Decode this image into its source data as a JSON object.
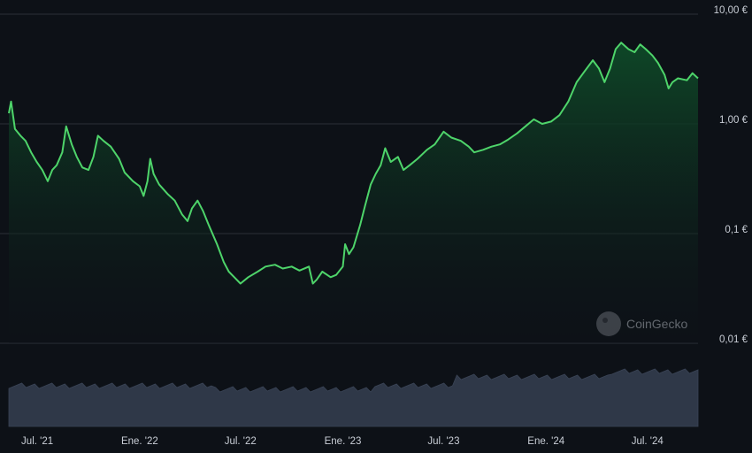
{
  "watermark": "CoinGecko",
  "chart_data": {
    "type": "area",
    "title": "",
    "xlabel": "",
    "ylabel": "",
    "y_scale": "log",
    "ylim": [
      0.01,
      10
    ],
    "y_ticks": [
      {
        "value": 10,
        "label": "10,00 €"
      },
      {
        "value": 1,
        "label": "1,00 €"
      },
      {
        "value": 0.1,
        "label": "0,1 €"
      },
      {
        "value": 0.01,
        "label": "0,01 €"
      }
    ],
    "x_range": [
      "2021-05-11",
      "2024-09-30"
    ],
    "x_ticks": [
      {
        "date": "2021-07-01",
        "label": "Jul. '21"
      },
      {
        "date": "2022-01-01",
        "label": "Ene. '22"
      },
      {
        "date": "2022-07-01",
        "label": "Jul. '22"
      },
      {
        "date": "2023-01-01",
        "label": "Ene. '23"
      },
      {
        "date": "2023-07-01",
        "label": "Jul. '23"
      },
      {
        "date": "2024-01-01",
        "label": "Ene. '24"
      },
      {
        "date": "2024-07-01",
        "label": "Jul. '24"
      }
    ],
    "grid": true,
    "series": [
      {
        "color": "#4ed46a",
        "fill_color": "#0e4a28",
        "points": [
          [
            "2021-05-11",
            1.25
          ],
          [
            "2021-05-15",
            1.6
          ],
          [
            "2021-05-22",
            0.9
          ],
          [
            "2021-06-01",
            0.78
          ],
          [
            "2021-06-10",
            0.7
          ],
          [
            "2021-06-20",
            0.55
          ],
          [
            "2021-06-30",
            0.45
          ],
          [
            "2021-07-10",
            0.38
          ],
          [
            "2021-07-20",
            0.3
          ],
          [
            "2021-07-28",
            0.38
          ],
          [
            "2021-08-05",
            0.42
          ],
          [
            "2021-08-15",
            0.55
          ],
          [
            "2021-08-22",
            0.95
          ],
          [
            "2021-09-01",
            0.65
          ],
          [
            "2021-09-10",
            0.5
          ],
          [
            "2021-09-20",
            0.4
          ],
          [
            "2021-10-01",
            0.38
          ],
          [
            "2021-10-10",
            0.5
          ],
          [
            "2021-10-18",
            0.78
          ],
          [
            "2021-10-28",
            0.7
          ],
          [
            "2021-11-10",
            0.62
          ],
          [
            "2021-11-25",
            0.48
          ],
          [
            "2021-12-05",
            0.36
          ],
          [
            "2021-12-20",
            0.3
          ],
          [
            "2022-01-01",
            0.27
          ],
          [
            "2022-01-08",
            0.22
          ],
          [
            "2022-01-15",
            0.3
          ],
          [
            "2022-01-20",
            0.48
          ],
          [
            "2022-01-26",
            0.35
          ],
          [
            "2022-02-05",
            0.28
          ],
          [
            "2022-02-20",
            0.23
          ],
          [
            "2022-03-05",
            0.2
          ],
          [
            "2022-03-18",
            0.15
          ],
          [
            "2022-03-28",
            0.13
          ],
          [
            "2022-04-05",
            0.17
          ],
          [
            "2022-04-15",
            0.2
          ],
          [
            "2022-04-25",
            0.16
          ],
          [
            "2022-05-05",
            0.12
          ],
          [
            "2022-05-20",
            0.08
          ],
          [
            "2022-06-01",
            0.055
          ],
          [
            "2022-06-10",
            0.045
          ],
          [
            "2022-06-20",
            0.04
          ],
          [
            "2022-07-01",
            0.035
          ],
          [
            "2022-07-15",
            0.04
          ],
          [
            "2022-08-01",
            0.045
          ],
          [
            "2022-08-15",
            0.05
          ],
          [
            "2022-09-01",
            0.052
          ],
          [
            "2022-09-15",
            0.048
          ],
          [
            "2022-10-01",
            0.05
          ],
          [
            "2022-10-15",
            0.046
          ],
          [
            "2022-11-01",
            0.05
          ],
          [
            "2022-11-08",
            0.035
          ],
          [
            "2022-11-15",
            0.038
          ],
          [
            "2022-11-25",
            0.045
          ],
          [
            "2022-12-10",
            0.04
          ],
          [
            "2022-12-20",
            0.042
          ],
          [
            "2023-01-01",
            0.05
          ],
          [
            "2023-01-05",
            0.08
          ],
          [
            "2023-01-12",
            0.065
          ],
          [
            "2023-01-20",
            0.075
          ],
          [
            "2023-02-01",
            0.12
          ],
          [
            "2023-02-10",
            0.18
          ],
          [
            "2023-02-20",
            0.28
          ],
          [
            "2023-03-01",
            0.35
          ],
          [
            "2023-03-10",
            0.42
          ],
          [
            "2023-03-18",
            0.6
          ],
          [
            "2023-03-28",
            0.45
          ],
          [
            "2023-04-10",
            0.5
          ],
          [
            "2023-04-20",
            0.38
          ],
          [
            "2023-05-01",
            0.42
          ],
          [
            "2023-05-15",
            0.48
          ],
          [
            "2023-06-01",
            0.58
          ],
          [
            "2023-06-15",
            0.65
          ],
          [
            "2023-07-01",
            0.85
          ],
          [
            "2023-07-15",
            0.75
          ],
          [
            "2023-08-01",
            0.7
          ],
          [
            "2023-08-15",
            0.62
          ],
          [
            "2023-08-25",
            0.55
          ],
          [
            "2023-09-10",
            0.58
          ],
          [
            "2023-09-25",
            0.62
          ],
          [
            "2023-10-10",
            0.65
          ],
          [
            "2023-10-25",
            0.72
          ],
          [
            "2023-11-10",
            0.82
          ],
          [
            "2023-11-25",
            0.95
          ],
          [
            "2023-12-10",
            1.1
          ],
          [
            "2023-12-25",
            1.0
          ],
          [
            "2024-01-10",
            1.05
          ],
          [
            "2024-01-25",
            1.2
          ],
          [
            "2024-02-10",
            1.6
          ],
          [
            "2024-02-25",
            2.4
          ],
          [
            "2024-03-10",
            3.0
          ],
          [
            "2024-03-25",
            3.8
          ],
          [
            "2024-04-05",
            3.2
          ],
          [
            "2024-04-15",
            2.4
          ],
          [
            "2024-04-25",
            3.2
          ],
          [
            "2024-05-05",
            4.8
          ],
          [
            "2024-05-15",
            5.5
          ],
          [
            "2024-05-28",
            4.8
          ],
          [
            "2024-06-08",
            4.5
          ],
          [
            "2024-06-18",
            5.3
          ],
          [
            "2024-06-28",
            4.8
          ],
          [
            "2024-07-10",
            4.2
          ],
          [
            "2024-07-20",
            3.6
          ],
          [
            "2024-08-01",
            2.8
          ],
          [
            "2024-08-08",
            2.1
          ],
          [
            "2024-08-15",
            2.4
          ],
          [
            "2024-08-25",
            2.6
          ],
          [
            "2024-09-10",
            2.5
          ],
          [
            "2024-09-20",
            2.9
          ],
          [
            "2024-09-30",
            2.6
          ]
        ]
      }
    ]
  }
}
